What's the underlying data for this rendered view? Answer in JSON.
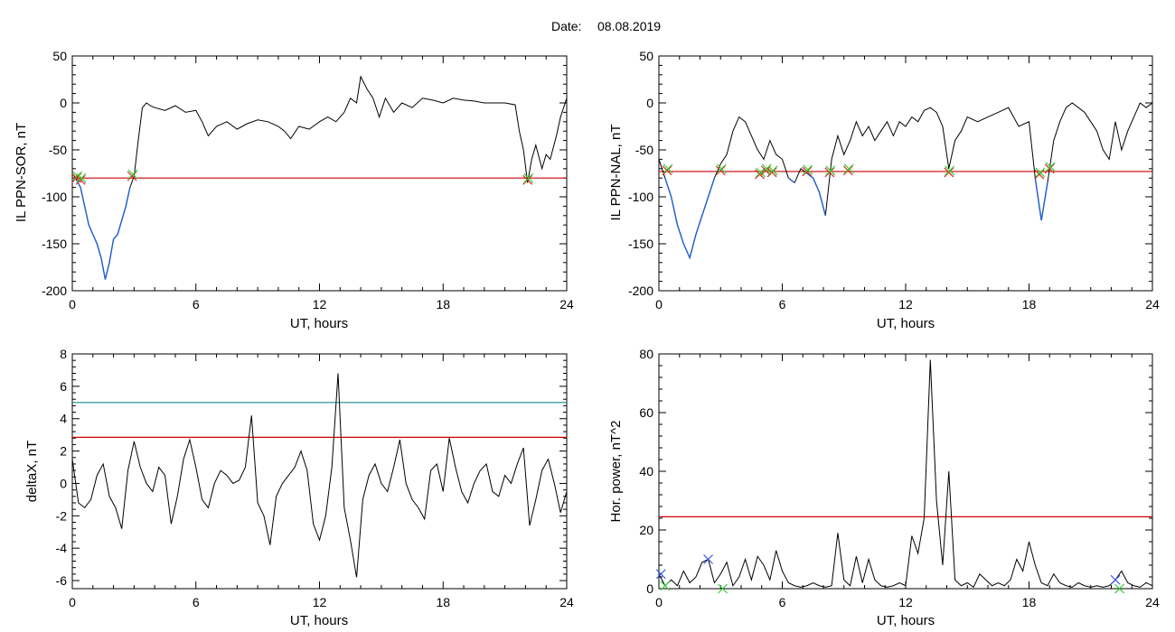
{
  "header": {
    "date_label": "Date:",
    "date_value": "08.08.2019"
  },
  "colors": {
    "series": "#000000",
    "threshold": "#cc0000",
    "upper_threshold": "#1a8a8a",
    "highlight": "#1f5fd0",
    "marker_red": "#dd2222",
    "marker_green": "#33cc33",
    "marker_blue": "#3355dd"
  },
  "chart_data": [
    {
      "type": "line",
      "xlabel": "UT, hours",
      "ylabel": "IL PPN-SOR, nT",
      "xlim": [
        0,
        24
      ],
      "ylim": [
        -200,
        50
      ],
      "xticks": [
        "0",
        "6",
        "12",
        "18",
        "24"
      ],
      "yticks": [
        "-200",
        "-150",
        "-100",
        "-50",
        "0",
        "50"
      ],
      "series": [
        {
          "x": [
            0,
            0.2,
            0.4,
            0.6,
            0.8,
            1.0,
            1.2,
            1.4,
            1.6,
            1.8,
            2.0,
            2.2,
            2.4,
            2.6,
            2.8,
            3.0,
            3.2,
            3.4,
            3.6,
            3.8,
            4.0,
            4.5,
            5.0,
            5.5,
            6.0,
            6.3,
            6.6,
            7.0,
            7.5,
            8.0,
            8.5,
            9.0,
            9.5,
            10.0,
            10.3,
            10.6,
            11.0,
            11.5,
            12.0,
            12.4,
            12.8,
            13.2,
            13.5,
            13.8,
            14.0,
            14.3,
            14.6,
            14.9,
            15.2,
            15.6,
            16.0,
            16.5,
            17.0,
            17.5,
            18.0,
            18.5,
            19.0,
            19.5,
            20.0,
            20.5,
            21.0,
            21.5,
            21.7,
            21.9,
            22.1,
            22.3,
            22.5,
            22.8,
            23.0,
            23.2,
            23.5,
            23.7,
            24.0
          ],
          "y": [
            -75,
            -82,
            -90,
            -110,
            -130,
            -140,
            -150,
            -165,
            -188,
            -170,
            -145,
            -140,
            -125,
            -110,
            -90,
            -78,
            -40,
            -5,
            0,
            -3,
            -5,
            -8,
            -3,
            -10,
            -8,
            -20,
            -35,
            -25,
            -20,
            -28,
            -22,
            -18,
            -20,
            -25,
            -30,
            -38,
            -25,
            -28,
            -20,
            -15,
            -20,
            -10,
            5,
            0,
            28,
            15,
            5,
            -15,
            5,
            -10,
            0,
            -5,
            5,
            3,
            0,
            5,
            3,
            2,
            0,
            0,
            0,
            -2,
            -30,
            -50,
            -85,
            -60,
            -45,
            -70,
            -55,
            -60,
            -35,
            -15,
            5
          ]
        }
      ],
      "threshold": -80,
      "markers": [
        {
          "x": 0.2,
          "y": -80
        },
        {
          "x": 0.4,
          "y": -82
        },
        {
          "x": 2.9,
          "y": -78
        },
        {
          "x": 22.1,
          "y": -82
        }
      ]
    },
    {
      "type": "line",
      "xlabel": "UT, hours",
      "ylabel": "IL PPN-NAL, nT",
      "xlim": [
        0,
        24
      ],
      "ylim": [
        -200,
        50
      ],
      "xticks": [
        "0",
        "6",
        "12",
        "18",
        "24"
      ],
      "yticks": [
        "-200",
        "-150",
        "-100",
        "-50",
        "0",
        "50"
      ],
      "series": [
        {
          "x": [
            0,
            0.3,
            0.6,
            0.9,
            1.2,
            1.5,
            1.8,
            2.1,
            2.4,
            2.7,
            3.0,
            3.3,
            3.6,
            3.9,
            4.2,
            4.5,
            4.8,
            5.1,
            5.4,
            5.7,
            6.0,
            6.3,
            6.6,
            6.9,
            7.2,
            7.5,
            7.8,
            8.1,
            8.4,
            8.7,
            9.0,
            9.3,
            9.6,
            9.9,
            10.2,
            10.5,
            10.8,
            11.1,
            11.4,
            11.7,
            12.0,
            12.3,
            12.6,
            12.9,
            13.2,
            13.5,
            13.8,
            14.1,
            14.4,
            14.7,
            15.0,
            15.5,
            16.0,
            16.5,
            17.0,
            17.5,
            18.0,
            18.3,
            18.6,
            18.9,
            19.2,
            19.5,
            19.8,
            20.1,
            20.4,
            20.7,
            21.0,
            21.3,
            21.6,
            21.9,
            22.2,
            22.5,
            22.8,
            23.1,
            23.4,
            23.7,
            24.0
          ],
          "y": [
            -60,
            -80,
            -100,
            -130,
            -150,
            -165,
            -140,
            -120,
            -100,
            -80,
            -65,
            -55,
            -30,
            -15,
            -20,
            -35,
            -50,
            -60,
            -40,
            -55,
            -60,
            -80,
            -85,
            -70,
            -75,
            -80,
            -95,
            -120,
            -60,
            -35,
            -55,
            -40,
            -20,
            -35,
            -25,
            -40,
            -30,
            -20,
            -35,
            -20,
            -25,
            -15,
            -20,
            -8,
            -5,
            -10,
            -25,
            -70,
            -40,
            -30,
            -15,
            -20,
            -15,
            -10,
            -5,
            -25,
            -20,
            -80,
            -125,
            -85,
            -40,
            -20,
            -5,
            0,
            -5,
            -10,
            -20,
            -30,
            -50,
            -60,
            -20,
            -50,
            -30,
            -15,
            0,
            -5,
            0
          ]
        }
      ],
      "threshold": -73,
      "markers": [
        {
          "x": 0.4,
          "y": -72
        },
        {
          "x": 3.0,
          "y": -72
        },
        {
          "x": 4.9,
          "y": -76
        },
        {
          "x": 5.2,
          "y": -72
        },
        {
          "x": 5.5,
          "y": -74
        },
        {
          "x": 7.2,
          "y": -73
        },
        {
          "x": 8.3,
          "y": -74
        },
        {
          "x": 9.2,
          "y": -72
        },
        {
          "x": 14.1,
          "y": -74
        },
        {
          "x": 18.5,
          "y": -76
        },
        {
          "x": 19.0,
          "y": -70
        }
      ]
    },
    {
      "type": "line",
      "xlabel": "UT, hours",
      "ylabel": "deltaX, nT",
      "xlim": [
        0,
        24
      ],
      "ylim": [
        -6.5,
        8
      ],
      "xticks": [
        "0",
        "6",
        "12",
        "18",
        "24"
      ],
      "yticks": [
        "-6",
        "-4",
        "-2",
        "0",
        "2",
        "4",
        "6",
        "8"
      ],
      "series": [
        {
          "x": [
            0,
            0.3,
            0.6,
            0.9,
            1.2,
            1.5,
            1.8,
            2.1,
            2.4,
            2.7,
            3.0,
            3.3,
            3.6,
            3.9,
            4.2,
            4.5,
            4.8,
            5.1,
            5.4,
            5.7,
            6.0,
            6.3,
            6.6,
            6.9,
            7.2,
            7.5,
            7.8,
            8.1,
            8.4,
            8.7,
            9.0,
            9.3,
            9.6,
            9.9,
            10.2,
            10.5,
            10.8,
            11.1,
            11.4,
            11.7,
            12.0,
            12.3,
            12.6,
            12.9,
            13.2,
            13.5,
            13.8,
            14.1,
            14.4,
            14.7,
            15.0,
            15.3,
            15.6,
            15.9,
            16.2,
            16.5,
            16.8,
            17.1,
            17.4,
            17.7,
            18.0,
            18.3,
            18.6,
            18.9,
            19.2,
            19.5,
            19.8,
            20.1,
            20.4,
            20.7,
            21.0,
            21.3,
            21.6,
            21.9,
            22.2,
            22.5,
            22.8,
            23.1,
            23.4,
            23.7,
            24.0
          ],
          "y": [
            1.5,
            -1.2,
            -1.5,
            -1.0,
            0.5,
            1.2,
            -0.8,
            -1.5,
            -2.8,
            0.8,
            2.6,
            1.0,
            0.0,
            -0.5,
            1.0,
            0.5,
            -2.5,
            -0.8,
            1.5,
            2.7,
            1.0,
            -1.0,
            -1.5,
            0.0,
            0.8,
            0.5,
            0.0,
            0.2,
            1.0,
            4.2,
            -1.2,
            -2.0,
            -3.8,
            -0.8,
            0.0,
            0.5,
            1.0,
            2.0,
            0.8,
            -2.5,
            -3.5,
            -2.0,
            1.0,
            6.8,
            -1.5,
            -3.5,
            -5.8,
            -1.0,
            0.5,
            1.2,
            0.0,
            -0.5,
            1.0,
            2.7,
            0.0,
            -1.0,
            -1.5,
            -2.2,
            0.8,
            1.2,
            -0.5,
            2.8,
            1.0,
            -0.5,
            -1.2,
            0.0,
            0.8,
            1.2,
            -0.5,
            -0.8,
            0.5,
            0.0,
            1.2,
            2.2,
            -2.6,
            -1.0,
            0.8,
            1.5,
            0.0,
            -1.8,
            -0.5
          ]
        }
      ],
      "threshold": 2.85,
      "upper_threshold": 5.0
    },
    {
      "type": "line",
      "xlabel": "UT, hours",
      "ylabel": "Hor. power, nT^2",
      "xlim": [
        0,
        24
      ],
      "ylim": [
        0,
        80
      ],
      "xticks": [
        "0",
        "6",
        "12",
        "18",
        "24"
      ],
      "yticks": [
        "0",
        "20",
        "40",
        "60",
        "80"
      ],
      "series": [
        {
          "x": [
            0,
            0.3,
            0.6,
            0.9,
            1.2,
            1.5,
            1.8,
            2.1,
            2.4,
            2.7,
            3.0,
            3.3,
            3.6,
            3.9,
            4.2,
            4.5,
            4.8,
            5.1,
            5.4,
            5.7,
            6.0,
            6.3,
            6.6,
            6.9,
            7.2,
            7.5,
            7.8,
            8.1,
            8.4,
            8.7,
            9.0,
            9.3,
            9.6,
            9.9,
            10.2,
            10.5,
            10.8,
            11.1,
            11.4,
            11.7,
            12.0,
            12.3,
            12.6,
            12.9,
            13.2,
            13.5,
            13.8,
            14.1,
            14.4,
            14.7,
            15.0,
            15.3,
            15.6,
            15.9,
            16.2,
            16.5,
            16.8,
            17.1,
            17.4,
            17.7,
            18.0,
            18.3,
            18.6,
            18.9,
            19.2,
            19.5,
            19.8,
            20.1,
            20.4,
            20.7,
            21.0,
            21.3,
            21.6,
            21.9,
            22.2,
            22.5,
            22.8,
            23.1,
            23.4,
            23.7,
            24.0
          ],
          "y": [
            5,
            1,
            3,
            1,
            6,
            2,
            4,
            9,
            10,
            2,
            5,
            9,
            1,
            4,
            10,
            3,
            11,
            8,
            3,
            13,
            6,
            2,
            1,
            0.5,
            1,
            2,
            1,
            0.5,
            1,
            19,
            3,
            1,
            11,
            2,
            10,
            3,
            1,
            0.5,
            1,
            2,
            1,
            18,
            12,
            24,
            78,
            30,
            8,
            40,
            3,
            1,
            2,
            0.5,
            5,
            3,
            1,
            2,
            1,
            3,
            10,
            6,
            16,
            8,
            2,
            1,
            5,
            2,
            1,
            0.5,
            2,
            1,
            0.5,
            1,
            0.5,
            1,
            3,
            6,
            2,
            1,
            0.5,
            2,
            1
          ]
        }
      ],
      "threshold": 24.5,
      "markers": [
        {
          "x": 0.1,
          "y": 5,
          "color": "blue"
        },
        {
          "x": 0.3,
          "y": 1,
          "color": "green"
        },
        {
          "x": 2.4,
          "y": 10,
          "color": "blue"
        },
        {
          "x": 3.1,
          "y": 0,
          "color": "green"
        },
        {
          "x": 22.2,
          "y": 3,
          "color": "blue"
        },
        {
          "x": 22.4,
          "y": 0,
          "color": "green"
        }
      ]
    }
  ]
}
